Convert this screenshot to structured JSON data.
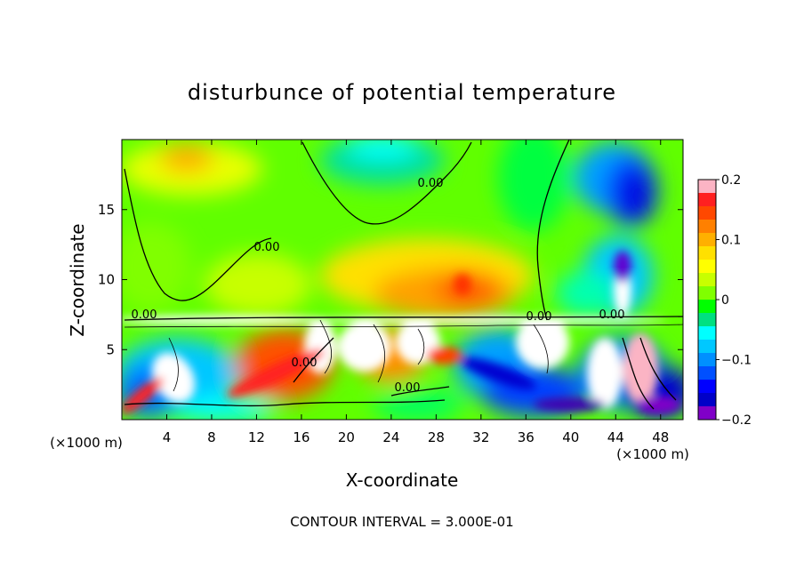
{
  "chart_data": {
    "type": "heatmap",
    "title": "disturbunce of potential temperature",
    "xlabel": "X-coordinate",
    "ylabel": "Z-coordinate",
    "x_unit": "(×1000 m)",
    "y_unit": "(×1000 m)",
    "xlim": [
      0,
      50
    ],
    "ylim": [
      0,
      20
    ],
    "x_ticks": [
      4,
      8,
      12,
      16,
      20,
      24,
      28,
      32,
      36,
      40,
      44,
      48
    ],
    "y_ticks": [
      5,
      10,
      15
    ],
    "colorbar": {
      "range": [
        -0.2,
        0.2
      ],
      "tick_values": [
        0.2,
        0.1,
        0,
        -0.1,
        -0.2
      ],
      "tick_labels": [
        "0.2",
        "0.1",
        "0",
        "−0.1",
        "−0.2"
      ],
      "colors": [
        "#fbb4c4",
        "#ff2020",
        "#ff4800",
        "#ff8000",
        "#ffb000",
        "#ffe000",
        "#ffff00",
        "#c8ff00",
        "#80ff00",
        "#00ff00",
        "#00e080",
        "#00ffff",
        "#00c8ff",
        "#0090ff",
        "#0050ff",
        "#0000ff",
        "#0000c8",
        "#8000c8"
      ]
    },
    "contour_labels": [
      "0.00",
      "0.00",
      "0.00",
      "0.00",
      "0.00",
      "0.00",
      "0.00"
    ],
    "footer": "CONTOUR INTERVAL = 3.000E-01"
  }
}
